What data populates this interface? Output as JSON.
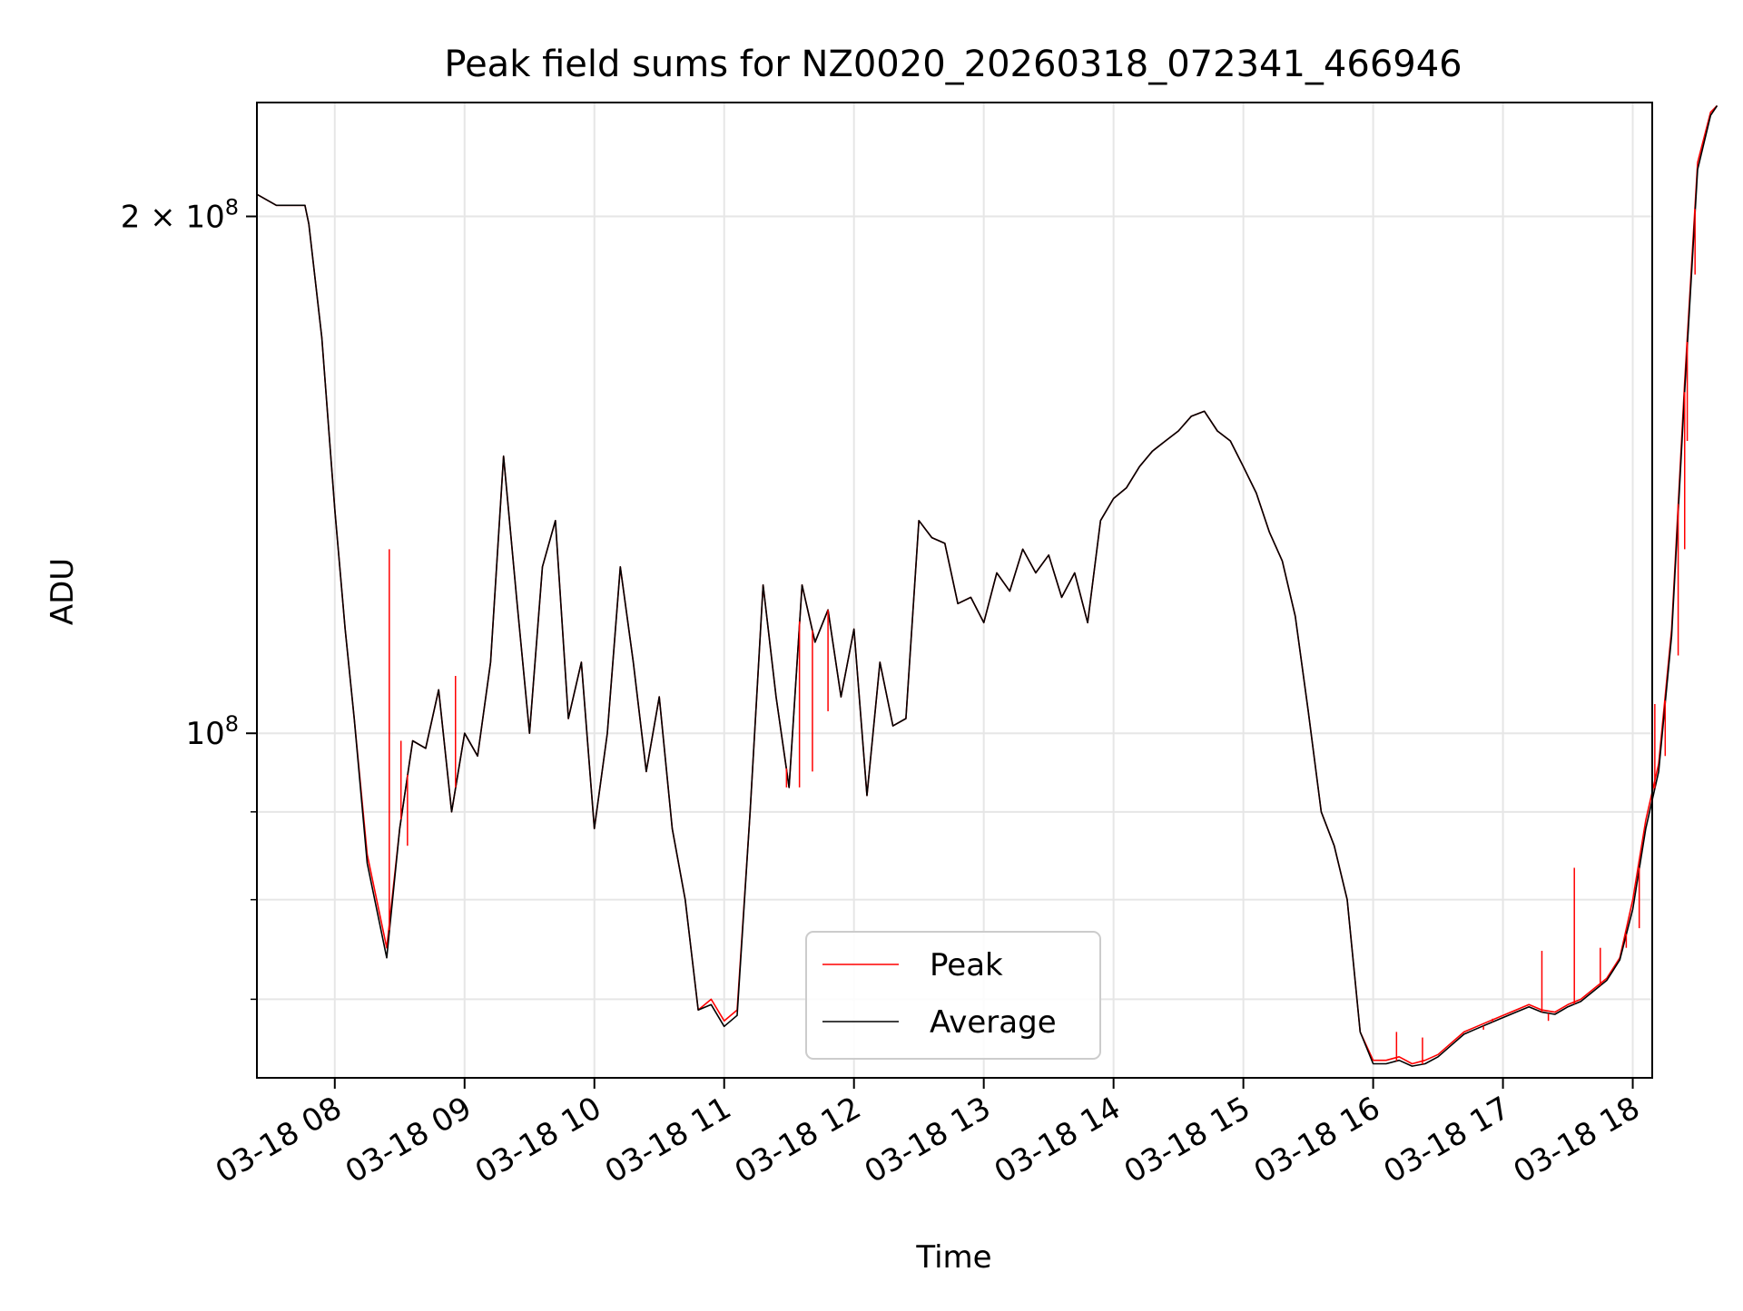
{
  "chart_data": {
    "type": "line",
    "title": "Peak field sums for NZ0020_20260318_072341_466946",
    "xlabel": "Time",
    "ylabel": "ADU",
    "x_tick_labels": [
      "03-18 08",
      "03-18 09",
      "03-18 10",
      "03-18 11",
      "03-18 12",
      "03-18 13",
      "03-18 14",
      "03-18 15",
      "03-18 16",
      "03-18 17",
      "03-18 18"
    ],
    "x_tick_hours": [
      8,
      9,
      10,
      11,
      12,
      13,
      14,
      15,
      16,
      17,
      18
    ],
    "xlim": [
      7.4,
      18.15
    ],
    "ylim": [
      63000000,
      233000000
    ],
    "y_scale": "log",
    "y_major_ticks": [
      {
        "value": 200000000,
        "mantissa": "2",
        "times": "×",
        "base": "10",
        "exp": "8"
      },
      {
        "value": 100000000,
        "mantissa": "",
        "times": "",
        "base": "10",
        "exp": "8"
      }
    ],
    "y_minor_ticks": [
      70000000,
      80000000,
      90000000
    ],
    "grid": true,
    "legend_position": "lower center",
    "series": [
      {
        "name": "Peak",
        "color": "#ff0000",
        "points": [
          [
            7.4,
            206000000.0
          ],
          [
            7.55,
            203000000.0
          ],
          [
            7.77,
            203000000.0
          ],
          [
            7.8,
            198000000.0
          ],
          [
            7.9,
            170000000.0
          ],
          [
            8.0,
            135000000.0
          ],
          [
            8.08,
            115000000.0
          ],
          [
            8.15,
            102000000.0
          ],
          [
            8.25,
            85000000.0
          ],
          [
            8.4,
            75000000.0
          ],
          [
            8.5,
            88000000.0
          ],
          [
            8.6,
            99000000.0
          ],
          [
            8.7,
            98000000.0
          ],
          [
            8.8,
            106000000.0
          ],
          [
            8.9,
            90000000.0
          ],
          [
            9.0,
            100000000.0
          ],
          [
            9.1,
            97000000.0
          ],
          [
            9.2,
            110000000.0
          ],
          [
            9.3,
            145000000.0
          ],
          [
            9.4,
            120000000.0
          ],
          [
            9.5,
            100000000.0
          ],
          [
            9.6,
            125000000.0
          ],
          [
            9.7,
            133000000.0
          ],
          [
            9.8,
            102000000.0
          ],
          [
            9.9,
            110000000.0
          ],
          [
            10.0,
            88000000.0
          ],
          [
            10.1,
            100000000.0
          ],
          [
            10.2,
            125000000.0
          ],
          [
            10.3,
            110000000.0
          ],
          [
            10.4,
            95000000.0
          ],
          [
            10.5,
            105000000.0
          ],
          [
            10.6,
            88000000.0
          ],
          [
            10.7,
            80000000.0
          ],
          [
            10.8,
            69000000.0
          ],
          [
            10.9,
            70000000.0
          ],
          [
            11.0,
            68000000.0
          ],
          [
            11.1,
            69000000.0
          ],
          [
            11.2,
            90000000.0
          ],
          [
            11.3,
            122000000.0
          ],
          [
            11.4,
            105000000.0
          ],
          [
            11.5,
            93000000.0
          ],
          [
            11.6,
            122000000.0
          ],
          [
            11.7,
            113000000.0
          ],
          [
            11.8,
            118000000.0
          ],
          [
            11.9,
            105000000.0
          ],
          [
            12.0,
            115000000.0
          ],
          [
            12.1,
            92000000.0
          ],
          [
            12.2,
            110000000.0
          ],
          [
            12.3,
            101000000.0
          ],
          [
            12.4,
            102000000.0
          ],
          [
            12.5,
            133000000.0
          ],
          [
            12.6,
            130000000.0
          ],
          [
            12.7,
            129000000.0
          ],
          [
            12.8,
            119000000.0
          ],
          [
            12.9,
            120000000.0
          ],
          [
            13.0,
            116000000.0
          ],
          [
            13.1,
            124000000.0
          ],
          [
            13.2,
            121000000.0
          ],
          [
            13.3,
            128000000.0
          ],
          [
            13.4,
            124000000.0
          ],
          [
            13.5,
            127000000.0
          ],
          [
            13.6,
            120000000.0
          ],
          [
            13.7,
            124000000.0
          ],
          [
            13.8,
            116000000.0
          ],
          [
            13.9,
            133000000.0
          ],
          [
            14.0,
            137000000.0
          ],
          [
            14.1,
            139000000.0
          ],
          [
            14.2,
            143000000.0
          ],
          [
            14.3,
            146000000.0
          ],
          [
            14.4,
            148000000.0
          ],
          [
            14.5,
            150000000.0
          ],
          [
            14.6,
            153000000.0
          ],
          [
            14.7,
            154000000.0
          ],
          [
            14.8,
            150000000.0
          ],
          [
            14.9,
            148000000.0
          ],
          [
            15.0,
            143000000.0
          ],
          [
            15.1,
            138000000.0
          ],
          [
            15.2,
            131000000.0
          ],
          [
            15.3,
            126000000.0
          ],
          [
            15.4,
            117000000.0
          ],
          [
            15.5,
            103000000.0
          ],
          [
            15.6,
            90000000.0
          ],
          [
            15.7,
            86000000.0
          ],
          [
            15.8,
            80000000.0
          ],
          [
            15.9,
            67000000.0
          ],
          [
            16.0,
            64500000.0
          ],
          [
            16.1,
            64500000.0
          ],
          [
            16.2,
            64800000.0
          ],
          [
            16.3,
            64200000.0
          ],
          [
            16.4,
            64500000.0
          ],
          [
            16.5,
            65000000.0
          ],
          [
            16.6,
            66000000.0
          ],
          [
            16.7,
            67000000.0
          ],
          [
            16.8,
            67500000.0
          ],
          [
            16.9,
            68000000.0
          ],
          [
            17.0,
            68500000.0
          ],
          [
            17.1,
            69000000.0
          ],
          [
            17.2,
            69500000.0
          ],
          [
            17.3,
            69000000.0
          ],
          [
            17.4,
            68800000.0
          ],
          [
            17.5,
            69500000.0
          ],
          [
            17.6,
            70000000.0
          ],
          [
            17.7,
            71000000.0
          ],
          [
            17.8,
            72000000.0
          ],
          [
            17.9,
            74000000.0
          ],
          [
            18.0,
            80000000.0
          ],
          [
            18.1,
            89000000.0
          ],
          [
            18.2,
            96000000.0
          ],
          [
            18.3,
            115000000.0
          ],
          [
            18.4,
            160000000.0
          ],
          [
            18.5,
            215000000.0
          ],
          [
            18.6,
            230000000.0
          ],
          [
            18.65,
            232000000.0
          ]
        ]
      },
      {
        "name": "Average",
        "color": "#000000",
        "points": [
          [
            7.4,
            206000000.0
          ],
          [
            7.55,
            203000000.0
          ],
          [
            7.77,
            203000000.0
          ],
          [
            7.8,
            198000000.0
          ],
          [
            7.9,
            170000000.0
          ],
          [
            8.0,
            135000000.0
          ],
          [
            8.08,
            115000000.0
          ],
          [
            8.15,
            102000000.0
          ],
          [
            8.25,
            84000000.0
          ],
          [
            8.4,
            74000000.0
          ],
          [
            8.5,
            88000000.0
          ],
          [
            8.6,
            99000000.0
          ],
          [
            8.7,
            98000000.0
          ],
          [
            8.8,
            106000000.0
          ],
          [
            8.9,
            90000000.0
          ],
          [
            9.0,
            100000000.0
          ],
          [
            9.1,
            97000000.0
          ],
          [
            9.2,
            110000000.0
          ],
          [
            9.3,
            145000000.0
          ],
          [
            9.4,
            120000000.0
          ],
          [
            9.5,
            100000000.0
          ],
          [
            9.6,
            125000000.0
          ],
          [
            9.7,
            133000000.0
          ],
          [
            9.8,
            102000000.0
          ],
          [
            9.9,
            110000000.0
          ],
          [
            10.0,
            88000000.0
          ],
          [
            10.1,
            100000000.0
          ],
          [
            10.2,
            125000000.0
          ],
          [
            10.3,
            110000000.0
          ],
          [
            10.4,
            95000000.0
          ],
          [
            10.5,
            105000000.0
          ],
          [
            10.6,
            88000000.0
          ],
          [
            10.7,
            80000000.0
          ],
          [
            10.8,
            69000000.0
          ],
          [
            10.9,
            69500000.0
          ],
          [
            11.0,
            67500000.0
          ],
          [
            11.1,
            68500000.0
          ],
          [
            11.2,
            90000000.0
          ],
          [
            11.3,
            122000000.0
          ],
          [
            11.4,
            105000000.0
          ],
          [
            11.5,
            93000000.0
          ],
          [
            11.6,
            122000000.0
          ],
          [
            11.7,
            113000000.0
          ],
          [
            11.8,
            118000000.0
          ],
          [
            11.9,
            105000000.0
          ],
          [
            12.0,
            115000000.0
          ],
          [
            12.1,
            92000000.0
          ],
          [
            12.2,
            110000000.0
          ],
          [
            12.3,
            101000000.0
          ],
          [
            12.4,
            102000000.0
          ],
          [
            12.5,
            133000000.0
          ],
          [
            12.6,
            130000000.0
          ],
          [
            12.7,
            129000000.0
          ],
          [
            12.8,
            119000000.0
          ],
          [
            12.9,
            120000000.0
          ],
          [
            13.0,
            116000000.0
          ],
          [
            13.1,
            124000000.0
          ],
          [
            13.2,
            121000000.0
          ],
          [
            13.3,
            128000000.0
          ],
          [
            13.4,
            124000000.0
          ],
          [
            13.5,
            127000000.0
          ],
          [
            13.6,
            120000000.0
          ],
          [
            13.7,
            124000000.0
          ],
          [
            13.8,
            116000000.0
          ],
          [
            13.9,
            133000000.0
          ],
          [
            14.0,
            137000000.0
          ],
          [
            14.1,
            139000000.0
          ],
          [
            14.2,
            143000000.0
          ],
          [
            14.3,
            146000000.0
          ],
          [
            14.4,
            148000000.0
          ],
          [
            14.5,
            150000000.0
          ],
          [
            14.6,
            153000000.0
          ],
          [
            14.7,
            154000000.0
          ],
          [
            14.8,
            150000000.0
          ],
          [
            14.9,
            148000000.0
          ],
          [
            15.0,
            143000000.0
          ],
          [
            15.1,
            138000000.0
          ],
          [
            15.2,
            131000000.0
          ],
          [
            15.3,
            126000000.0
          ],
          [
            15.4,
            117000000.0
          ],
          [
            15.5,
            103000000.0
          ],
          [
            15.6,
            90000000.0
          ],
          [
            15.7,
            86000000.0
          ],
          [
            15.8,
            80000000.0
          ],
          [
            15.9,
            67000000.0
          ],
          [
            16.0,
            64200000.0
          ],
          [
            16.1,
            64200000.0
          ],
          [
            16.2,
            64500000.0
          ],
          [
            16.3,
            64000000.0
          ],
          [
            16.4,
            64200000.0
          ],
          [
            16.5,
            64800000.0
          ],
          [
            16.6,
            65800000.0
          ],
          [
            16.7,
            66800000.0
          ],
          [
            16.8,
            67300000.0
          ],
          [
            16.9,
            67800000.0
          ],
          [
            17.0,
            68300000.0
          ],
          [
            17.1,
            68800000.0
          ],
          [
            17.2,
            69300000.0
          ],
          [
            17.3,
            68800000.0
          ],
          [
            17.4,
            68600000.0
          ],
          [
            17.5,
            69300000.0
          ],
          [
            17.6,
            69800000.0
          ],
          [
            17.7,
            70800000.0
          ],
          [
            17.8,
            71800000.0
          ],
          [
            17.9,
            73800000.0
          ],
          [
            18.0,
            79000000.0
          ],
          [
            18.1,
            88000000.0
          ],
          [
            18.2,
            95000000.0
          ],
          [
            18.3,
            114000000.0
          ],
          [
            18.4,
            158000000.0
          ],
          [
            18.5,
            213000000.0
          ],
          [
            18.6,
            229000000.0
          ],
          [
            18.65,
            232000000.0
          ]
        ]
      }
    ],
    "peak_spikes": [
      [
        8.42,
        128000000.0
      ],
      [
        8.51,
        99000000.0
      ],
      [
        8.56,
        86000000.0
      ],
      [
        8.93,
        108000000.0
      ],
      [
        11.48,
        93000000.0
      ],
      [
        11.58,
        93000000.0
      ],
      [
        11.68,
        95000000.0
      ],
      [
        11.8,
        103000000.0
      ],
      [
        16.18,
        67000000.0
      ],
      [
        16.38,
        66500000.0
      ],
      [
        16.85,
        67200000.0
      ],
      [
        16.92,
        68200000.0
      ],
      [
        17.3,
        74700000.0
      ],
      [
        17.35,
        68000000.0
      ],
      [
        17.55,
        83500000.0
      ],
      [
        17.75,
        75000000.0
      ],
      [
        17.95,
        75000000.0
      ],
      [
        18.05,
        77000000.0
      ],
      [
        18.17,
        104000000.0
      ],
      [
        18.25,
        97000000.0
      ],
      [
        18.35,
        111000000.0
      ],
      [
        18.4,
        128000000.0
      ],
      [
        18.42,
        148000000.0
      ],
      [
        18.48,
        185000000.0
      ]
    ]
  }
}
